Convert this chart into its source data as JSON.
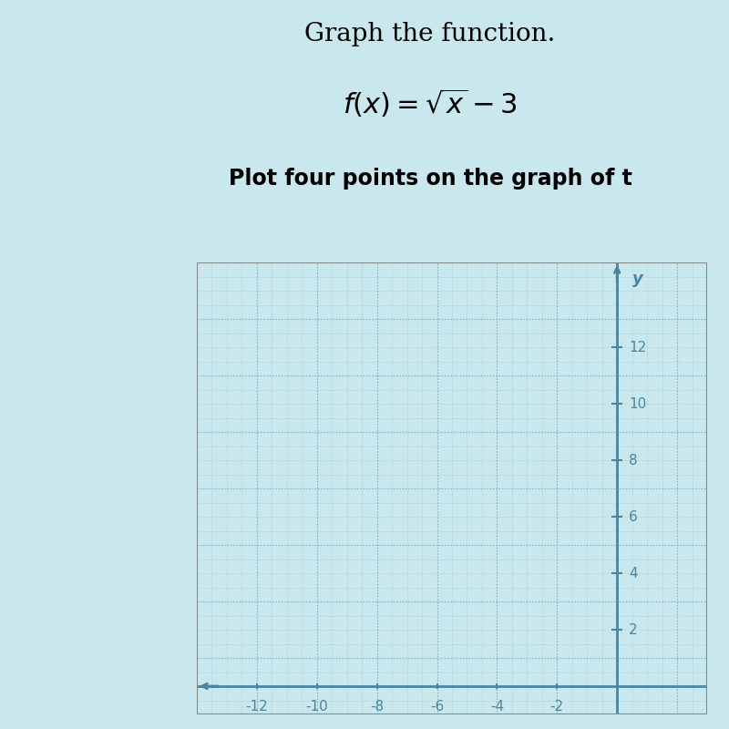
{
  "title": "Graph the function.",
  "formula_display": "f(x) = \\sqrt{x} - 3",
  "instruction": "Plot four points on the graph of t",
  "xlim": [
    -14,
    3
  ],
  "ylim": [
    -1,
    15
  ],
  "xticks": [
    -12,
    -10,
    -8,
    -6,
    -4,
    -2
  ],
  "yticks": [
    2,
    4,
    6,
    8,
    10,
    12
  ],
  "grid_color": "#7BAFC0",
  "axis_color": "#4A85A0",
  "plot_bg_color": "#EDE8F0",
  "outer_bg_color": "#C8E8EE",
  "left_panel_color": "#5BBCC8",
  "text_bg_color": "#E8F4F8",
  "title_fontsize": 20,
  "formula_fontsize": 22,
  "instruction_fontsize": 17,
  "label_color": "#4A85A0",
  "tick_label_fontsize": 11,
  "minor_step": 0.5,
  "major_step": 2
}
